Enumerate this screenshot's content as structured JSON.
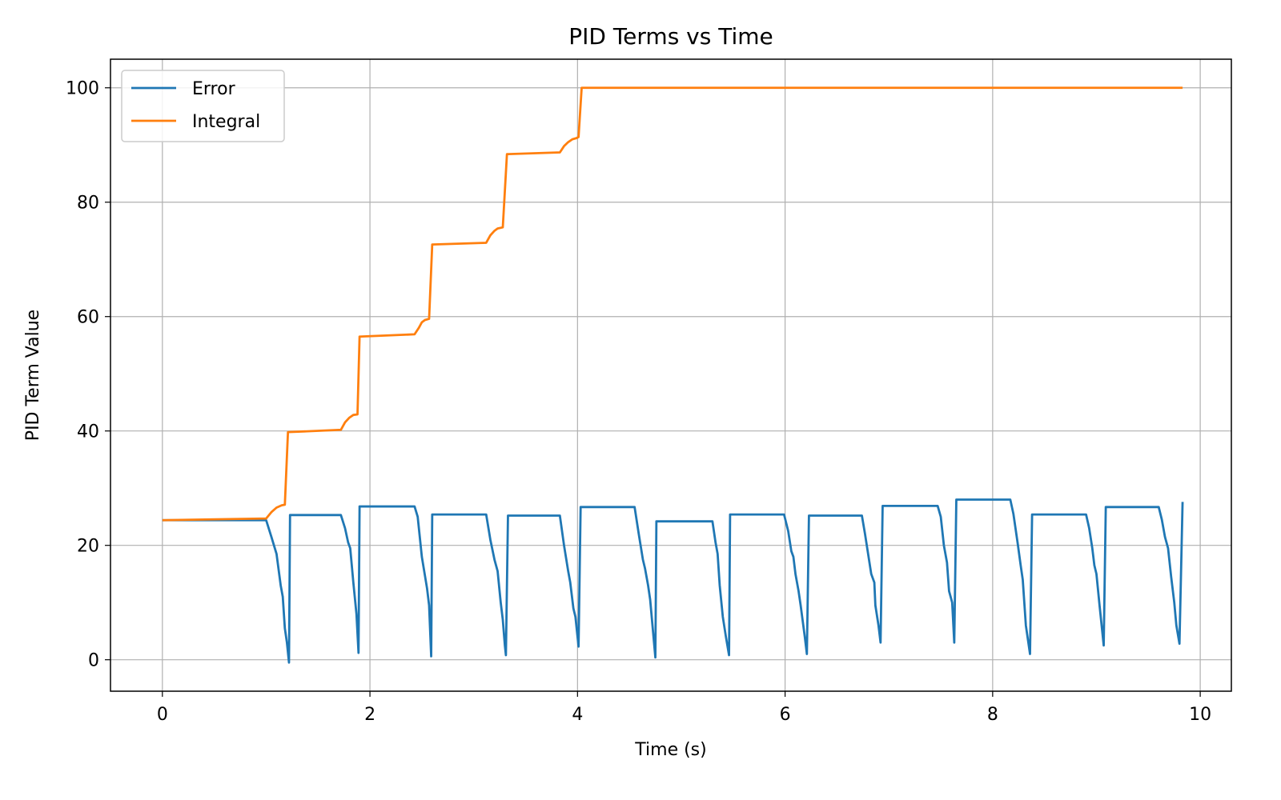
{
  "chart_data": {
    "type": "line",
    "title": "PID Terms vs Time",
    "xlabel": "Time (s)",
    "ylabel": "PID Term Value",
    "xlim": [
      -0.5,
      10.3
    ],
    "ylim": [
      -5.5,
      105
    ],
    "xticks": [
      0,
      2,
      4,
      6,
      8,
      10
    ],
    "yticks": [
      0,
      20,
      40,
      60,
      80,
      100
    ],
    "grid": true,
    "legend_position": "top-left",
    "series": [
      {
        "name": "Error",
        "color": "#1f77b4",
        "points": [
          [
            0.0,
            24.4
          ],
          [
            1.0,
            24.4
          ],
          [
            1.05,
            21.5
          ],
          [
            1.1,
            18.5
          ],
          [
            1.14,
            13.0
          ],
          [
            1.16,
            11.0
          ],
          [
            1.18,
            5.5
          ],
          [
            1.2,
            3.0
          ],
          [
            1.22,
            -0.5
          ],
          [
            1.23,
            25.3
          ],
          [
            1.72,
            25.3
          ],
          [
            1.76,
            23.0
          ],
          [
            1.79,
            20.5
          ],
          [
            1.81,
            19.5
          ],
          [
            1.84,
            13.5
          ],
          [
            1.87,
            8.0
          ],
          [
            1.89,
            1.2
          ],
          [
            1.9,
            26.8
          ],
          [
            2.43,
            26.8
          ],
          [
            2.46,
            25.0
          ],
          [
            2.5,
            18.0
          ],
          [
            2.55,
            12.5
          ],
          [
            2.57,
            9.5
          ],
          [
            2.59,
            0.6
          ],
          [
            2.6,
            25.4
          ],
          [
            3.12,
            25.4
          ],
          [
            3.16,
            21.0
          ],
          [
            3.2,
            17.5
          ],
          [
            3.23,
            15.5
          ],
          [
            3.26,
            10.0
          ],
          [
            3.28,
            7.0
          ],
          [
            3.3,
            2.5
          ],
          [
            3.31,
            0.8
          ],
          [
            3.33,
            25.2
          ],
          [
            3.83,
            25.2
          ],
          [
            3.87,
            20.0
          ],
          [
            3.91,
            15.5
          ],
          [
            3.93,
            13.5
          ],
          [
            3.96,
            9.0
          ],
          [
            3.98,
            7.5
          ],
          [
            4.01,
            2.3
          ],
          [
            4.03,
            26.7
          ],
          [
            4.55,
            26.7
          ],
          [
            4.59,
            22.0
          ],
          [
            4.63,
            17.5
          ],
          [
            4.65,
            16.0
          ],
          [
            4.68,
            13.0
          ],
          [
            4.7,
            10.5
          ],
          [
            4.75,
            0.4
          ],
          [
            4.76,
            24.2
          ],
          [
            5.3,
            24.2
          ],
          [
            5.33,
            20.5
          ],
          [
            5.35,
            18.5
          ],
          [
            5.37,
            13.0
          ],
          [
            5.4,
            7.5
          ],
          [
            5.43,
            4.0
          ],
          [
            5.46,
            0.8
          ],
          [
            5.47,
            25.4
          ],
          [
            5.99,
            25.4
          ],
          [
            6.03,
            22.5
          ],
          [
            6.06,
            19.0
          ],
          [
            6.08,
            18.0
          ],
          [
            6.1,
            15.0
          ],
          [
            6.13,
            12.0
          ],
          [
            6.15,
            9.5
          ],
          [
            6.19,
            4.0
          ],
          [
            6.21,
            1.0
          ],
          [
            6.23,
            25.2
          ],
          [
            6.74,
            25.2
          ],
          [
            6.77,
            22.0
          ],
          [
            6.8,
            18.5
          ],
          [
            6.83,
            15.0
          ],
          [
            6.86,
            13.5
          ],
          [
            6.87,
            9.5
          ],
          [
            6.9,
            6.0
          ],
          [
            6.92,
            3.0
          ],
          [
            6.94,
            26.9
          ],
          [
            7.47,
            26.9
          ],
          [
            7.5,
            25.0
          ],
          [
            7.53,
            20.0
          ],
          [
            7.56,
            17.0
          ],
          [
            7.58,
            12.0
          ],
          [
            7.61,
            10.0
          ],
          [
            7.63,
            3.0
          ],
          [
            7.65,
            28.0
          ],
          [
            8.17,
            28.0
          ],
          [
            8.2,
            25.5
          ],
          [
            8.24,
            20.5
          ],
          [
            8.27,
            16.5
          ],
          [
            8.29,
            14.0
          ],
          [
            8.32,
            6.0
          ],
          [
            8.36,
            1.0
          ],
          [
            8.38,
            25.4
          ],
          [
            8.9,
            25.4
          ],
          [
            8.93,
            23.0
          ],
          [
            8.96,
            19.5
          ],
          [
            8.98,
            16.5
          ],
          [
            9.0,
            15.0
          ],
          [
            9.03,
            9.5
          ],
          [
            9.07,
            2.5
          ],
          [
            9.09,
            26.7
          ],
          [
            9.6,
            26.7
          ],
          [
            9.63,
            24.5
          ],
          [
            9.66,
            21.5
          ],
          [
            9.69,
            19.5
          ],
          [
            9.72,
            14.5
          ],
          [
            9.75,
            10.0
          ],
          [
            9.77,
            6.0
          ],
          [
            9.8,
            2.8
          ],
          [
            9.83,
            27.6
          ]
        ]
      },
      {
        "name": "Integral",
        "color": "#ff7f0e",
        "points": [
          [
            0.0,
            24.4
          ],
          [
            1.0,
            24.7
          ],
          [
            1.05,
            25.8
          ],
          [
            1.1,
            26.6
          ],
          [
            1.15,
            27.0
          ],
          [
            1.18,
            27.1
          ],
          [
            1.21,
            39.8
          ],
          [
            1.72,
            40.2
          ],
          [
            1.76,
            41.5
          ],
          [
            1.8,
            42.3
          ],
          [
            1.84,
            42.8
          ],
          [
            1.88,
            42.9
          ],
          [
            1.9,
            56.5
          ],
          [
            2.43,
            56.9
          ],
          [
            2.47,
            58.0
          ],
          [
            2.5,
            59.0
          ],
          [
            2.53,
            59.4
          ],
          [
            2.57,
            59.6
          ],
          [
            2.6,
            72.6
          ],
          [
            3.12,
            72.9
          ],
          [
            3.16,
            74.2
          ],
          [
            3.2,
            75.0
          ],
          [
            3.23,
            75.4
          ],
          [
            3.28,
            75.6
          ],
          [
            3.32,
            88.4
          ],
          [
            3.83,
            88.7
          ],
          [
            3.87,
            89.8
          ],
          [
            3.91,
            90.5
          ],
          [
            3.95,
            91.0
          ],
          [
            3.99,
            91.2
          ],
          [
            4.01,
            91.4
          ],
          [
            4.04,
            100.0
          ],
          [
            9.83,
            100.0
          ]
        ]
      }
    ]
  }
}
